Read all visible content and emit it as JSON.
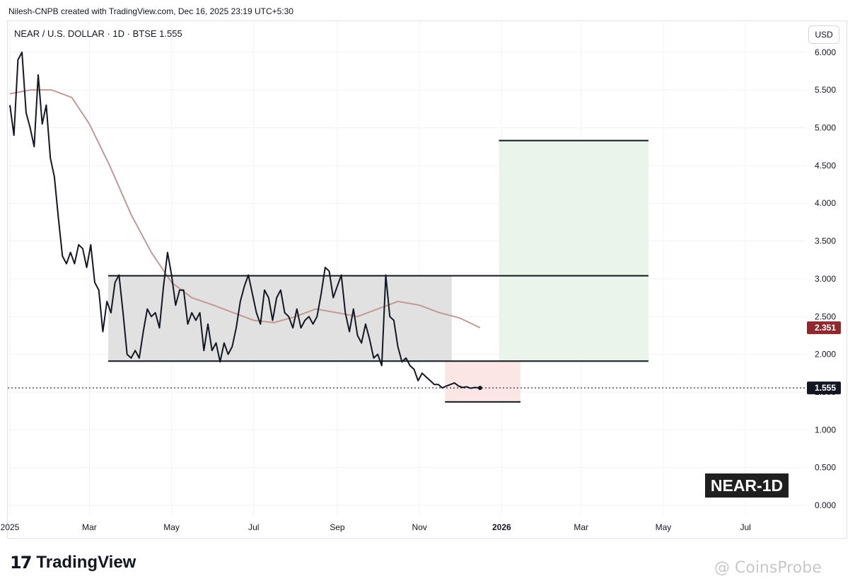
{
  "header": {
    "credit": "Nilesh-CNPB created with TradingView.com, Dec 16, 2025 23:19 UTC+5:30",
    "symbol_line": "NEAR / U.S. DOLLAR · 1D · BTSE  1.555",
    "currency_button": "USD"
  },
  "footer": {
    "logo_mark": "17",
    "logo_text": "TradingView",
    "watermark": "@ CoinsProbe"
  },
  "colors": {
    "price_line": "#131722",
    "moving_average": "#c09a96",
    "range_box": "#e1e1e1",
    "stop_zone": "#fbe5e5",
    "target_zone": "#e9f5ea",
    "ma_badge": "#8e2a2f",
    "price_badge": "#131722"
  },
  "chart_data": {
    "type": "line",
    "symbol": "NEAR / U.S. DOLLAR",
    "interval": "1D",
    "exchange": "BTSE",
    "last_price": 1.555,
    "y_axis": {
      "ticks": [
        "6.000",
        "5.500",
        "5.000",
        "4.500",
        "4.000",
        "3.500",
        "3.000",
        "2.500",
        "2.000",
        "1.500",
        "1.000",
        "0.500",
        "0.000"
      ],
      "ylim": [
        0,
        6
      ],
      "position": "right"
    },
    "x_axis": {
      "ticks": [
        "2025",
        "Mar",
        "May",
        "Jul",
        "Sep",
        "Nov",
        "2026",
        "Mar",
        "May",
        "Jul"
      ]
    },
    "series": [
      {
        "role": "price",
        "x": [
          "2025-01-01",
          "2025-01-04",
          "2025-01-07",
          "2025-01-10",
          "2025-01-13",
          "2025-01-16",
          "2025-01-19",
          "2025-01-22",
          "2025-01-25",
          "2025-01-28",
          "2025-01-31",
          "2025-02-03",
          "2025-02-06",
          "2025-02-09",
          "2025-02-12",
          "2025-02-15",
          "2025-02-18",
          "2025-02-21",
          "2025-02-24",
          "2025-02-27",
          "2025-03-02",
          "2025-03-05",
          "2025-03-08",
          "2025-03-11",
          "2025-03-14",
          "2025-03-17",
          "2025-03-20",
          "2025-03-23",
          "2025-03-26",
          "2025-03-29",
          "2025-04-01",
          "2025-04-04",
          "2025-04-07",
          "2025-04-10",
          "2025-04-13",
          "2025-04-16",
          "2025-04-19",
          "2025-04-22",
          "2025-04-25",
          "2025-04-28",
          "2025-05-01",
          "2025-05-04",
          "2025-05-07",
          "2025-05-10",
          "2025-05-13",
          "2025-05-16",
          "2025-05-19",
          "2025-05-22",
          "2025-05-25",
          "2025-05-28",
          "2025-05-31",
          "2025-06-03",
          "2025-06-06",
          "2025-06-09",
          "2025-06-12",
          "2025-06-15",
          "2025-06-18",
          "2025-06-21",
          "2025-06-24",
          "2025-06-27",
          "2025-06-30",
          "2025-07-03",
          "2025-07-06",
          "2025-07-09",
          "2025-07-12",
          "2025-07-15",
          "2025-07-18",
          "2025-07-21",
          "2025-07-24",
          "2025-07-27",
          "2025-07-30",
          "2025-08-02",
          "2025-08-05",
          "2025-08-08",
          "2025-08-11",
          "2025-08-14",
          "2025-08-17",
          "2025-08-20",
          "2025-08-23",
          "2025-08-26",
          "2025-08-29",
          "2025-09-01",
          "2025-09-04",
          "2025-09-07",
          "2025-09-10",
          "2025-09-13",
          "2025-09-16",
          "2025-09-19",
          "2025-09-22",
          "2025-09-25",
          "2025-09-28",
          "2025-10-01",
          "2025-10-04",
          "2025-10-07",
          "2025-10-10",
          "2025-10-13",
          "2025-10-16",
          "2025-10-19",
          "2025-10-22",
          "2025-10-25",
          "2025-10-28",
          "2025-10-31",
          "2025-11-03",
          "2025-11-06",
          "2025-11-09",
          "2025-11-12",
          "2025-11-15",
          "2025-11-18",
          "2025-11-21",
          "2025-11-24",
          "2025-11-27",
          "2025-11-30",
          "2025-12-03",
          "2025-12-06",
          "2025-12-09",
          "2025-12-12",
          "2025-12-16"
        ],
        "values": [
          5.3,
          4.9,
          5.9,
          6.0,
          5.2,
          5.0,
          4.75,
          5.7,
          5.05,
          5.3,
          4.6,
          4.35,
          3.8,
          3.3,
          3.2,
          3.35,
          3.2,
          3.45,
          3.4,
          3.15,
          3.45,
          2.95,
          2.85,
          2.3,
          2.7,
          2.55,
          2.95,
          3.05,
          2.55,
          2.0,
          1.95,
          2.05,
          1.95,
          2.3,
          2.6,
          2.5,
          2.55,
          2.35,
          2.9,
          3.35,
          3.05,
          2.65,
          2.85,
          2.85,
          2.4,
          2.55,
          2.45,
          2.55,
          2.05,
          2.4,
          2.05,
          2.15,
          1.9,
          2.15,
          2.0,
          2.1,
          2.35,
          2.7,
          2.9,
          3.05,
          2.8,
          2.55,
          2.4,
          2.85,
          2.75,
          2.45,
          2.75,
          2.85,
          2.55,
          2.5,
          2.35,
          2.6,
          2.35,
          2.45,
          2.5,
          2.4,
          2.5,
          2.8,
          3.15,
          3.1,
          2.75,
          2.9,
          3.05,
          2.55,
          2.3,
          2.6,
          2.25,
          2.15,
          2.4,
          2.2,
          1.95,
          2.0,
          1.85,
          3.05,
          2.5,
          2.45,
          2.1,
          1.9,
          1.95,
          1.85,
          1.8,
          1.65,
          1.75,
          1.7,
          1.65,
          1.6,
          1.6,
          1.555,
          1.58,
          1.6,
          1.62,
          1.58,
          1.56,
          1.57,
          1.55,
          1.56,
          1.555
        ]
      },
      {
        "role": "moving_average",
        "x": [
          "2025-01-01",
          "2025-01-16",
          "2025-02-01",
          "2025-02-16",
          "2025-03-01",
          "2025-03-16",
          "2025-04-01",
          "2025-04-16",
          "2025-05-01",
          "2025-05-16",
          "2025-06-01",
          "2025-06-16",
          "2025-07-01",
          "2025-07-16",
          "2025-08-01",
          "2025-08-16",
          "2025-09-01",
          "2025-09-16",
          "2025-10-01",
          "2025-10-16",
          "2025-11-01",
          "2025-11-16",
          "2025-12-01",
          "2025-12-16"
        ],
        "values": [
          5.45,
          5.5,
          5.5,
          5.4,
          5.05,
          4.5,
          3.85,
          3.35,
          2.95,
          2.75,
          2.65,
          2.55,
          2.45,
          2.42,
          2.5,
          2.6,
          2.55,
          2.5,
          2.6,
          2.7,
          2.65,
          2.55,
          2.48,
          2.351
        ],
        "last_value": 2.351
      }
    ],
    "annotations": {
      "range_box": {
        "low": 1.91,
        "high": 3.04,
        "from": "2025-03-15",
        "to": "2025-11-25"
      },
      "resistance_line": {
        "value": 3.04,
        "from": "2025-03-15",
        "to": "2026-04-20"
      },
      "support_line": {
        "value": 1.91,
        "from": "2025-03-15",
        "to": "2026-04-20"
      },
      "stop_zone": {
        "low": 1.37,
        "high": 1.91,
        "from": "2025-11-20",
        "to": "2026-01-15"
      },
      "stop_line": {
        "value": 1.37,
        "from": "2025-11-20",
        "to": "2026-01-15"
      },
      "target_zone": {
        "low": 1.91,
        "high": 4.83,
        "from": "2025-12-30",
        "to": "2026-04-20"
      },
      "target_line": {
        "value": 4.83,
        "from": "2025-12-30",
        "to": "2026-04-20"
      },
      "label": "NEAR-1D"
    },
    "grid": true,
    "legend": "none"
  }
}
